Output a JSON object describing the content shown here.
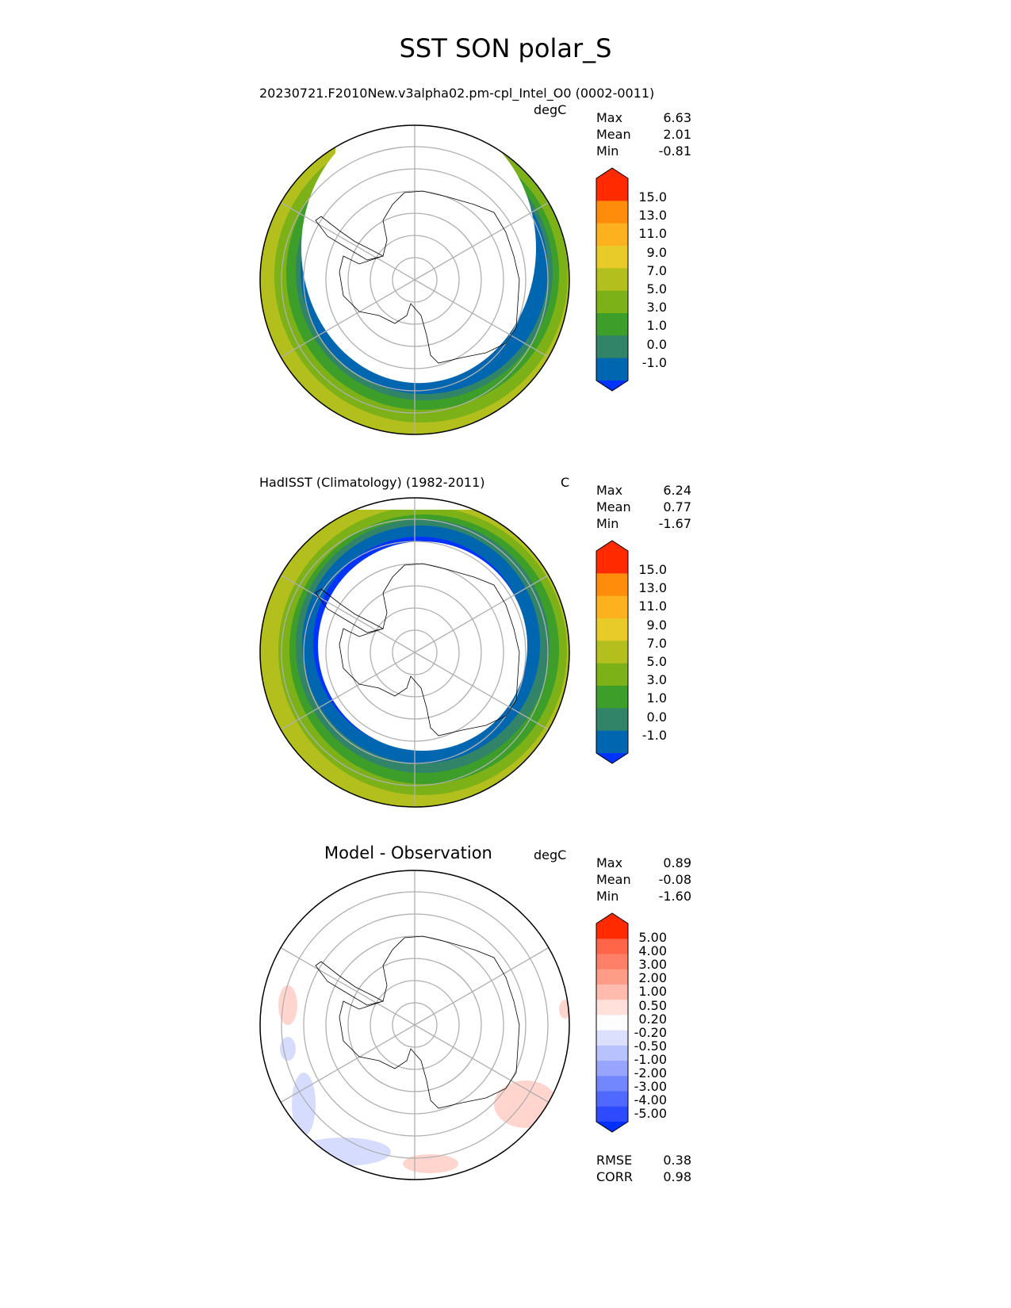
{
  "title": "SST SON polar_S",
  "panels": [
    {
      "name": "model",
      "title": "20230721.F2010New.v3alpha02.pm-cpl_Intel_O0 (0002-0011)",
      "units": "degC",
      "stats": {
        "max_label": "Max",
        "max": "6.63",
        "mean_label": "Mean",
        "mean": "2.01",
        "min_label": "Min",
        "min": "-0.81"
      },
      "colorbar": {
        "labels": [
          "15.0",
          "13.0",
          "11.0",
          "9.0",
          "7.0",
          "5.0",
          "3.0",
          "1.0",
          "0.0",
          "-1.0"
        ],
        "colors": [
          "#ff2a00",
          "#ff6600",
          "#ff8c0a",
          "#fdb11e",
          "#e8cb28",
          "#b3bf1c",
          "#7db118",
          "#3d9e2a",
          "#328468",
          "#0066b0",
          "#0033ff"
        ]
      }
    },
    {
      "name": "obs",
      "title": "HadISST (Climatology) (1982-2011)",
      "units": "C",
      "stats": {
        "max_label": "Max",
        "max": "6.24",
        "mean_label": "Mean",
        "mean": "0.77",
        "min_label": "Min",
        "min": "-1.67"
      },
      "colorbar": {
        "labels": [
          "15.0",
          "13.0",
          "11.0",
          "9.0",
          "7.0",
          "5.0",
          "3.0",
          "1.0",
          "0.0",
          "-1.0"
        ],
        "colors": [
          "#ff2a00",
          "#ff6600",
          "#ff8c0a",
          "#fdb11e",
          "#e8cb28",
          "#b3bf1c",
          "#7db118",
          "#3d9e2a",
          "#328468",
          "#0066b0",
          "#0033ff"
        ]
      }
    },
    {
      "name": "diff",
      "title": "Model - Observation",
      "units": "degC",
      "stats": {
        "max_label": "Max",
        "max": "0.89",
        "mean_label": "Mean",
        "mean": "-0.08",
        "min_label": "Min",
        "min": "-1.60"
      },
      "colorbar": {
        "labels": [
          "5.00",
          "4.00",
          "3.00",
          "2.00",
          "1.00",
          "0.50",
          "0.20",
          "-0.20",
          "-0.50",
          "-1.00",
          "-2.00",
          "-3.00",
          "-4.00",
          "-5.00"
        ],
        "colors": [
          "#ff2a00",
          "#ff4a26",
          "#ff6548",
          "#ff8068",
          "#ff9c88",
          "#ffbbad",
          "#ffe0da",
          "#fdfdfd",
          "#dce0fd",
          "#b8c3fd",
          "#97a5fd",
          "#7286fd",
          "#4f68fd",
          "#2d4bfd",
          "#0030ff"
        ]
      },
      "metrics": {
        "rmse_label": "RMSE",
        "rmse": "0.38",
        "corr_label": "CORR",
        "corr": "0.98"
      }
    }
  ]
}
